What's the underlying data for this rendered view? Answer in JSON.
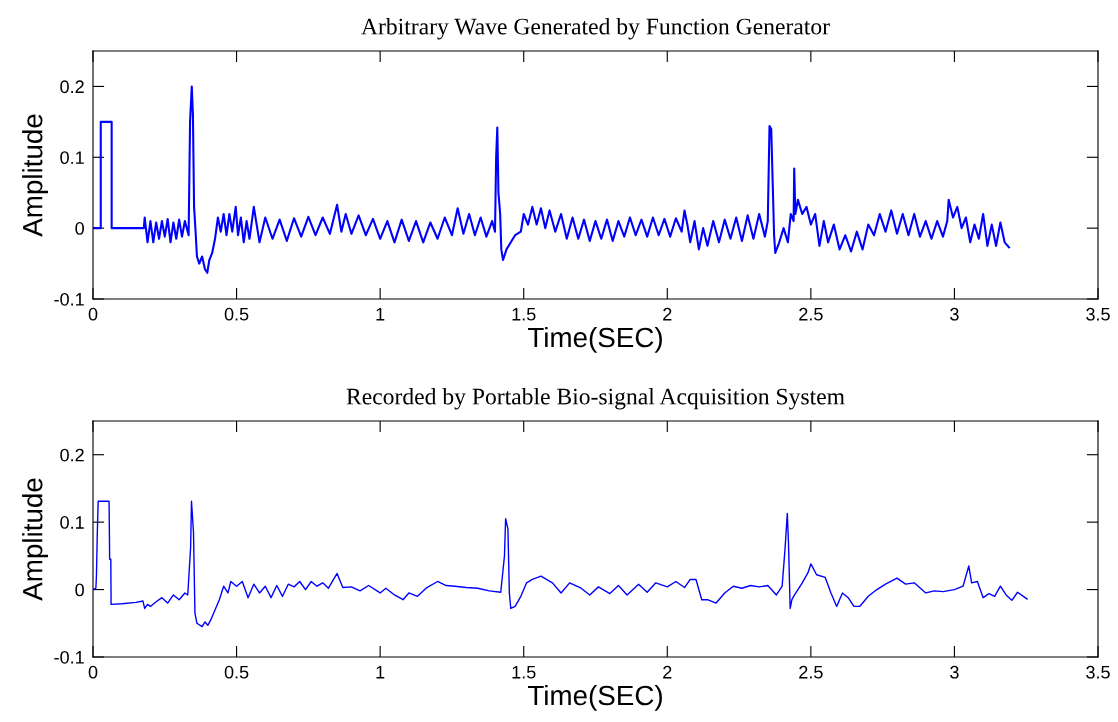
{
  "chart_data": [
    {
      "type": "line",
      "title": "Arbitrary Wave Generated by Function Generator",
      "xlabel": "Time(SEC)",
      "ylabel": "Amplitude",
      "xlim": [
        0,
        3.5
      ],
      "ylim": [
        -0.1,
        0.25
      ],
      "xticks": [
        0,
        0.5,
        1,
        1.5,
        2,
        2.5,
        3,
        3.5
      ],
      "yticks": [
        -0.1,
        0,
        0.1,
        0.2
      ],
      "series": [
        {
          "color": "#0000ff",
          "x": [
            0,
            0.027,
            0.027,
            0.065,
            0.065,
            0.177,
            0.18,
            0.19,
            0.2,
            0.21,
            0.22,
            0.23,
            0.24,
            0.25,
            0.26,
            0.27,
            0.28,
            0.29,
            0.3,
            0.31,
            0.32,
            0.333,
            0.338,
            0.344,
            0.348,
            0.352,
            0.358,
            0.362,
            0.37,
            0.38,
            0.39,
            0.398,
            0.405,
            0.415,
            0.425,
            0.435,
            0.445,
            0.455,
            0.465,
            0.475,
            0.485,
            0.497,
            0.505,
            0.515,
            0.525,
            0.535,
            0.545,
            0.56,
            0.58,
            0.6,
            0.625,
            0.65,
            0.675,
            0.7,
            0.725,
            0.75,
            0.775,
            0.8,
            0.825,
            0.85,
            0.865,
            0.88,
            0.9,
            0.925,
            0.95,
            0.975,
            1.0,
            1.025,
            1.05,
            1.075,
            1.1,
            1.125,
            1.15,
            1.175,
            1.2,
            1.225,
            1.25,
            1.27,
            1.29,
            1.31,
            1.33,
            1.35,
            1.37,
            1.39,
            1.4,
            1.404,
            1.408,
            1.412,
            1.418,
            1.422,
            1.428,
            1.44,
            1.455,
            1.47,
            1.49,
            1.5,
            1.515,
            1.53,
            1.545,
            1.56,
            1.575,
            1.59,
            1.61,
            1.63,
            1.65,
            1.67,
            1.69,
            1.71,
            1.73,
            1.75,
            1.77,
            1.79,
            1.81,
            1.83,
            1.85,
            1.87,
            1.89,
            1.91,
            1.93,
            1.95,
            1.97,
            1.99,
            2.01,
            2.03,
            2.05,
            2.06,
            2.07,
            2.08,
            2.095,
            2.11,
            2.125,
            2.14,
            2.16,
            2.18,
            2.2,
            2.22,
            2.24,
            2.26,
            2.28,
            2.3,
            2.32,
            2.34,
            2.35,
            2.356,
            2.362,
            2.368,
            2.372,
            2.376,
            2.39,
            2.405,
            2.42,
            2.43,
            2.44,
            2.442,
            2.446,
            2.455,
            2.47,
            2.485,
            2.5,
            2.515,
            2.53,
            2.545,
            2.56,
            2.58,
            2.6,
            2.62,
            2.64,
            2.66,
            2.68,
            2.7,
            2.72,
            2.74,
            2.76,
            2.78,
            2.8,
            2.82,
            2.84,
            2.86,
            2.88,
            2.9,
            2.92,
            2.94,
            2.96,
            2.975,
            2.98,
            2.995,
            3.01,
            3.025,
            3.04,
            3.055,
            3.07,
            3.085,
            3.1,
            3.115,
            3.13,
            3.145,
            3.16,
            3.175,
            3.19
          ],
          "values": [
            0,
            0,
            0.15,
            0.15,
            0,
            0,
            0.015,
            -0.02,
            0.01,
            -0.02,
            0.008,
            -0.015,
            0.01,
            -0.012,
            0.013,
            -0.02,
            0.008,
            -0.015,
            0.012,
            -0.012,
            0.01,
            -0.01,
            0.15,
            0.2,
            0.16,
            0.03,
            -0.01,
            -0.04,
            -0.05,
            -0.04,
            -0.058,
            -0.063,
            -0.045,
            -0.035,
            -0.015,
            0.015,
            -0.005,
            0.02,
            -0.01,
            0.02,
            -0.005,
            0.03,
            -0.01,
            0.015,
            -0.02,
            0.01,
            -0.015,
            0.03,
            -0.02,
            0.015,
            -0.015,
            0.012,
            -0.018,
            0.014,
            -0.012,
            0.016,
            -0.01,
            0.015,
            -0.008,
            0.033,
            -0.005,
            0.02,
            -0.008,
            0.018,
            -0.01,
            0.013,
            -0.015,
            0.01,
            -0.02,
            0.012,
            -0.018,
            0.01,
            -0.02,
            0.008,
            -0.015,
            0.015,
            -0.01,
            0.028,
            -0.008,
            0.02,
            -0.01,
            0.015,
            -0.012,
            0.01,
            -0.005,
            0.1,
            0.142,
            0.05,
            0.02,
            -0.03,
            -0.045,
            -0.03,
            -0.02,
            -0.01,
            -0.005,
            0.02,
            0.005,
            0.03,
            0.005,
            0.028,
            0,
            0.025,
            -0.005,
            0.02,
            -0.015,
            0.015,
            -0.015,
            0.012,
            -0.018,
            0.01,
            -0.015,
            0.012,
            -0.018,
            0.01,
            -0.012,
            0.015,
            -0.01,
            0.012,
            -0.012,
            0.015,
            -0.01,
            0.013,
            -0.012,
            0.014,
            -0.005,
            0.025,
            0.005,
            -0.02,
            0.01,
            -0.03,
            0,
            -0.025,
            0.01,
            -0.02,
            0.012,
            -0.015,
            0.015,
            -0.018,
            0.018,
            -0.015,
            0.02,
            -0.012,
            0.01,
            0.144,
            0.14,
            0.05,
            -0.01,
            -0.035,
            -0.02,
            0,
            -0.02,
            0.02,
            0.01,
            0.084,
            0.02,
            0.04,
            0.02,
            0.03,
            0.005,
            0.02,
            -0.025,
            0.01,
            -0.02,
            0.005,
            -0.03,
            -0.01,
            -0.033,
            -0.005,
            -0.03,
            0.005,
            -0.01,
            0.02,
            -0.005,
            0.025,
            -0.008,
            0.02,
            -0.01,
            0.02,
            -0.012,
            0.01,
            -0.015,
            0.01,
            -0.012,
            0.01,
            0.04,
            0.015,
            0.03,
            0,
            0.015,
            -0.02,
            0.005,
            -0.015,
            0.02,
            -0.025,
            0.005,
            -0.025,
            0.008,
            -0.02,
            -0.027
          ]
        }
      ]
    },
    {
      "type": "line",
      "title": "Recorded by Portable Bio-signal Acquisition System",
      "xlabel": "Time(SEC)",
      "ylabel": "Amplitude",
      "xlim": [
        0,
        3.5
      ],
      "ylim": [
        -0.1,
        0.25
      ],
      "xticks": [
        0,
        0.5,
        1,
        1.5,
        2,
        2.5,
        3,
        3.5
      ],
      "yticks": [
        -0.1,
        0,
        0.1,
        0.2
      ],
      "series": [
        {
          "color": "#0000ff",
          "x": [
            0,
            0.01,
            0.012,
            0.015,
            0.018,
            0.056,
            0.058,
            0.062,
            0.063,
            0.1,
            0.15,
            0.174,
            0.18,
            0.19,
            0.2,
            0.22,
            0.24,
            0.26,
            0.28,
            0.3,
            0.32,
            0.33,
            0.34,
            0.343,
            0.35,
            0.355,
            0.362,
            0.38,
            0.39,
            0.4,
            0.41,
            0.42,
            0.44,
            0.455,
            0.47,
            0.48,
            0.5,
            0.52,
            0.54,
            0.56,
            0.58,
            0.6,
            0.62,
            0.64,
            0.66,
            0.68,
            0.7,
            0.72,
            0.74,
            0.76,
            0.78,
            0.8,
            0.82,
            0.85,
            0.87,
            0.9,
            0.93,
            0.96,
            1.0,
            1.02,
            1.05,
            1.08,
            1.1,
            1.13,
            1.16,
            1.2,
            1.23,
            1.26,
            1.3,
            1.34,
            1.38,
            1.42,
            1.433,
            1.437,
            1.445,
            1.45,
            1.455,
            1.47,
            1.49,
            1.51,
            1.53,
            1.56,
            1.6,
            1.63,
            1.66,
            1.7,
            1.73,
            1.76,
            1.8,
            1.83,
            1.86,
            1.9,
            1.93,
            1.96,
            2.0,
            2.03,
            2.06,
            2.08,
            2.1,
            2.12,
            2.14,
            2.17,
            2.2,
            2.23,
            2.26,
            2.29,
            2.32,
            2.35,
            2.38,
            2.4,
            2.41,
            2.418,
            2.422,
            2.428,
            2.434,
            2.44,
            2.47,
            2.49,
            2.5,
            2.52,
            2.55,
            2.57,
            2.59,
            2.61,
            2.63,
            2.65,
            2.67,
            2.7,
            2.73,
            2.76,
            2.8,
            2.83,
            2.86,
            2.9,
            2.93,
            2.96,
            3.0,
            3.03,
            3.05,
            3.06,
            3.08,
            3.1,
            3.12,
            3.14,
            3.16,
            3.18,
            3.2,
            3.22,
            3.24,
            3.253
          ],
          "values": [
            0,
            0.002,
            0.02,
            0.084,
            0.131,
            0.131,
            0.045,
            0.045,
            -0.022,
            -0.021,
            -0.019,
            -0.017,
            -0.028,
            -0.022,
            -0.025,
            -0.018,
            -0.012,
            -0.02,
            -0.008,
            -0.015,
            -0.005,
            -0.008,
            0.063,
            0.131,
            0.085,
            -0.035,
            -0.05,
            -0.055,
            -0.048,
            -0.053,
            -0.045,
            -0.035,
            -0.015,
            0.005,
            -0.005,
            0.012,
            0.005,
            0.012,
            -0.012,
            0.008,
            -0.005,
            0.005,
            -0.012,
            0.006,
            -0.01,
            0.008,
            0.004,
            0.012,
            0,
            0.012,
            0.005,
            0.01,
            0.002,
            0.024,
            0.003,
            0.004,
            -0.002,
            0.006,
            -0.005,
            0.002,
            -0.008,
            -0.015,
            -0.005,
            -0.01,
            0.002,
            0.012,
            0.006,
            0.005,
            0.003,
            0.002,
            -0.002,
            -0.004,
            0.05,
            0.105,
            0.09,
            -0.005,
            -0.028,
            -0.025,
            -0.01,
            0.01,
            0.015,
            0.02,
            0.01,
            -0.005,
            0.01,
            0.002,
            -0.008,
            0.004,
            -0.006,
            0.006,
            -0.008,
            0.008,
            -0.004,
            0.01,
            0.004,
            0.012,
            0.003,
            0.015,
            0.015,
            -0.015,
            -0.015,
            -0.02,
            -0.005,
            0.005,
            0.002,
            0.006,
            0.004,
            0.006,
            -0.008,
            0.005,
            0.06,
            0.113,
            0.07,
            -0.028,
            -0.015,
            -0.01,
            0.01,
            0.025,
            0.038,
            0.022,
            0.018,
            -0.005,
            -0.025,
            -0.005,
            -0.012,
            -0.025,
            -0.025,
            -0.01,
            0,
            0.008,
            0.017,
            0.008,
            0.01,
            -0.005,
            -0.002,
            -0.003,
            0,
            0.005,
            0.035,
            0.01,
            0.012,
            -0.012,
            -0.006,
            -0.01,
            0.005,
            -0.008,
            -0.016,
            -0.004,
            -0.01,
            -0.014
          ]
        }
      ]
    }
  ]
}
